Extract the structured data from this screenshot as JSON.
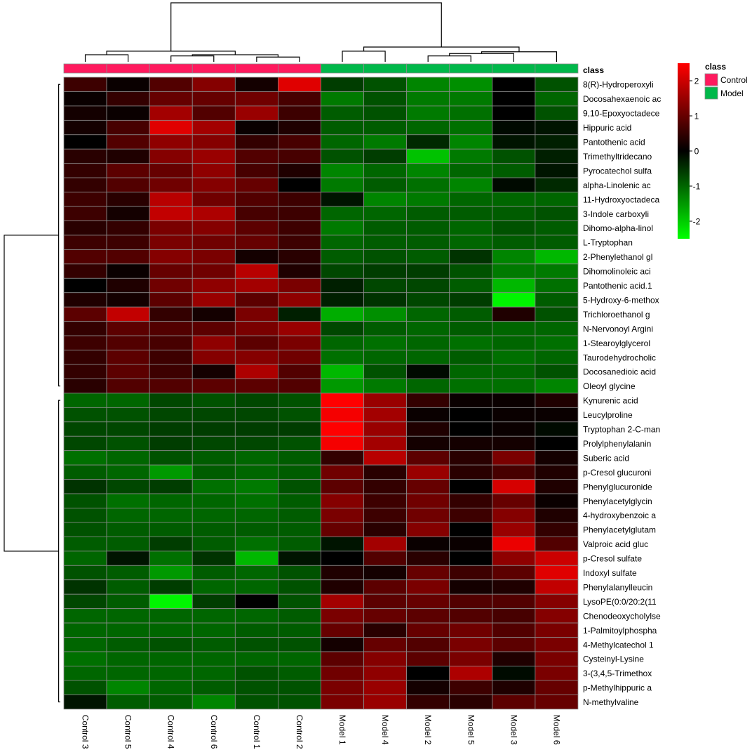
{
  "chart_data": {
    "type": "heatmap",
    "title": "",
    "colorscale": {
      "low": "#00ff00",
      "mid": "#000000",
      "high": "#ff0000",
      "range": [
        -2.5,
        2.5
      ],
      "ticks": [
        2,
        1,
        0,
        -1,
        -2
      ]
    },
    "annotation": {
      "label": "class",
      "legend_title": "class",
      "levels": [
        {
          "name": "Control",
          "color": "#ff1a5e"
        },
        {
          "name": "Model",
          "color": "#00b84a"
        }
      ]
    },
    "columns": [
      {
        "label": "Control 3",
        "class": "Control"
      },
      {
        "label": "Control 5",
        "class": "Control"
      },
      {
        "label": "Control 4",
        "class": "Control"
      },
      {
        "label": "Control 6",
        "class": "Control"
      },
      {
        "label": "Control 1",
        "class": "Control"
      },
      {
        "label": "Control 2",
        "class": "Control"
      },
      {
        "label": "Model 1",
        "class": "Model"
      },
      {
        "label": "Model 4",
        "class": "Model"
      },
      {
        "label": "Model 2",
        "class": "Model"
      },
      {
        "label": "Model 5",
        "class": "Model"
      },
      {
        "label": "Model 3",
        "class": "Model"
      },
      {
        "label": "Model 6",
        "class": "Model"
      }
    ],
    "rows": [
      "8(R)-Hydroperoxyli",
      "Docosahexaenoic ac",
      "9,10-Epoxyoctadece",
      "Hippuric acid",
      "Pantothenic acid",
      "Trimethyltridecano",
      "Pyrocatechol sulfa",
      "alpha-Linolenic ac",
      "11-Hydroxyoctadeca",
      "3-Indole carboxyli",
      "Dihomo-alpha-linol",
      "L-Tryptophan",
      "2-Phenylethanol gl",
      "Dihomolinoleic aci",
      "Pantothenic acid.1",
      "5-Hydroxy-6-methox",
      "Trichloroethanol g",
      "N-Nervonoyl Argini",
      "1-Stearoylglycerol",
      "Taurodehydrocholic",
      "Docosanedioic acid",
      "Oleoyl glycine",
      "Kynurenic acid",
      "Leucylproline",
      "Tryptophan 2-C-man",
      "Prolylphenylalanin",
      "Suberic acid",
      "p-Cresol glucuroni",
      "Phenylglucuronide",
      "Phenylacetylglycin",
      "4-hydroxybenzoic a",
      "Phenylacetylglutam",
      "Valproic acid gluc",
      "p-Cresol sulfate",
      "Indoxyl sulfate",
      "Phenylalanylleucin",
      "LysoPE(0:0/20:2(11",
      "Chenodeoxycholylse",
      "1-Palmitoylphospha",
      "4-Methylcatechol 1",
      "Cysteinyl-Lysine",
      "3-(3,4,5-Trimethox",
      "p-Methylhippuric a",
      "N-methylvaline"
    ],
    "values": [
      [
        0.6,
        0.1,
        0.8,
        1.3,
        0.2,
        2.2,
        -0.6,
        -0.8,
        -1.3,
        -1.4,
        0.0,
        -0.8
      ],
      [
        0.1,
        0.5,
        1.0,
        1.0,
        1.1,
        0.7,
        -1.2,
        -0.8,
        -1.2,
        -1.2,
        0.0,
        -1.0
      ],
      [
        0.2,
        0.1,
        1.6,
        0.8,
        1.5,
        0.6,
        -0.9,
        -0.8,
        -1.2,
        -1.1,
        0.0,
        -0.8
      ],
      [
        0.2,
        0.7,
        2.2,
        1.6,
        0.1,
        0.3,
        -0.9,
        -0.9,
        -1.0,
        -1.1,
        -0.1,
        -0.2
      ],
      [
        0.0,
        0.8,
        1.4,
        1.3,
        0.5,
        0.7,
        -1.0,
        -1.2,
        -0.4,
        -1.3,
        -0.2,
        -0.3
      ],
      [
        0.4,
        0.3,
        1.3,
        1.5,
        0.8,
        0.7,
        -0.8,
        -0.6,
        -1.9,
        -1.2,
        -0.8,
        -0.3
      ],
      [
        0.5,
        0.9,
        1.0,
        1.4,
        0.7,
        0.3,
        -1.3,
        -1.0,
        -1.3,
        -1.0,
        -0.9,
        -0.2
      ],
      [
        0.5,
        0.8,
        1.1,
        1.3,
        1.0,
        0.0,
        -1.2,
        -0.9,
        -1.1,
        -1.3,
        -0.1,
        -0.4
      ],
      [
        0.6,
        0.4,
        1.8,
        1.1,
        0.8,
        0.6,
        -0.2,
        -1.3,
        -1.2,
        -1.0,
        -1.0,
        -1.0
      ],
      [
        0.6,
        0.2,
        1.9,
        1.7,
        0.7,
        0.6,
        -1.0,
        -1.0,
        -0.9,
        -0.9,
        -0.9,
        -0.8
      ],
      [
        0.4,
        0.5,
        1.2,
        1.3,
        0.9,
        0.6,
        -1.2,
        -0.9,
        -0.9,
        -1.0,
        -0.8,
        -0.9
      ],
      [
        0.6,
        0.6,
        1.2,
        1.1,
        1.0,
        0.6,
        -1.0,
        -0.9,
        -0.9,
        -1.0,
        -0.9,
        -0.9
      ],
      [
        0.8,
        0.8,
        1.3,
        1.2,
        0.2,
        0.4,
        -0.9,
        -0.8,
        -0.9,
        -0.5,
        -1.3,
        -1.8
      ],
      [
        0.5,
        0.1,
        1.0,
        1.1,
        1.8,
        0.3,
        -0.7,
        -0.6,
        -0.6,
        -0.8,
        -1.2,
        -1.2
      ],
      [
        0.0,
        0.3,
        1.1,
        1.4,
        1.6,
        1.2,
        -0.3,
        -0.7,
        -0.7,
        -0.9,
        -1.8,
        -1.1
      ],
      [
        0.3,
        0.2,
        0.9,
        1.5,
        0.9,
        1.4,
        -0.3,
        -0.5,
        -0.7,
        -0.6,
        -2.4,
        -0.9
      ],
      [
        0.9,
        1.9,
        0.5,
        0.2,
        1.2,
        -0.3,
        -1.7,
        -1.4,
        -1.0,
        -0.9,
        0.3,
        -0.8
      ],
      [
        0.5,
        0.9,
        0.8,
        0.9,
        1.2,
        1.5,
        -0.7,
        -0.9,
        -1.0,
        -0.9,
        -1.0,
        -1.0
      ],
      [
        0.6,
        0.8,
        0.7,
        1.4,
        0.9,
        1.2,
        -1.0,
        -1.1,
        -1.0,
        -1.1,
        -1.0,
        -1.1
      ],
      [
        0.5,
        0.9,
        0.6,
        1.3,
        1.3,
        1.1,
        -1.1,
        -1.0,
        -1.0,
        -0.9,
        -1.1,
        -1.0
      ],
      [
        0.5,
        0.9,
        0.6,
        0.2,
        1.7,
        0.8,
        -1.8,
        -0.8,
        -0.1,
        -1.0,
        -1.0,
        -0.8
      ],
      [
        0.4,
        0.8,
        0.8,
        0.9,
        0.9,
        0.8,
        -1.5,
        -1.2,
        -1.0,
        -1.1,
        -1.1,
        -1.3
      ],
      [
        -1.0,
        -1.0,
        -0.7,
        -0.8,
        -0.7,
        -0.8,
        2.5,
        1.5,
        0.5,
        0.1,
        0.1,
        0.3
      ],
      [
        -0.8,
        -0.8,
        -0.7,
        -0.7,
        -0.7,
        -0.8,
        2.4,
        1.6,
        0.1,
        0.0,
        0.1,
        0.1
      ],
      [
        -0.7,
        -0.7,
        -0.6,
        -0.6,
        -0.6,
        -0.6,
        2.5,
        1.5,
        0.3,
        0.0,
        0.1,
        -0.1
      ],
      [
        -0.7,
        -0.8,
        -0.6,
        -0.7,
        -0.7,
        -0.8,
        2.4,
        1.6,
        0.2,
        0.2,
        0.2,
        0.0
      ],
      [
        -1.1,
        -1.0,
        -0.8,
        -0.9,
        -1.0,
        -0.9,
        0.5,
        1.8,
        0.9,
        0.4,
        1.2,
        0.2
      ],
      [
        -0.9,
        -1.0,
        -1.5,
        -0.9,
        -1.0,
        -0.9,
        1.1,
        0.4,
        1.5,
        0.4,
        0.7,
        0.3
      ],
      [
        -0.5,
        -0.7,
        -0.6,
        -1.1,
        -1.2,
        -0.8,
        0.9,
        0.5,
        1.0,
        0.0,
        2.1,
        0.3
      ],
      [
        -0.8,
        -1.1,
        -1.0,
        -1.0,
        -1.1,
        -0.9,
        1.3,
        0.6,
        1.1,
        0.5,
        1.0,
        0.1
      ],
      [
        -0.8,
        -1.0,
        -1.0,
        -1.0,
        -1.0,
        -0.9,
        1.2,
        0.6,
        1.1,
        0.6,
        1.3,
        0.3
      ],
      [
        -0.8,
        -0.9,
        -0.9,
        -0.9,
        -0.9,
        -0.9,
        1.0,
        0.4,
        1.3,
        0.0,
        1.5,
        0.5
      ],
      [
        -0.9,
        -0.9,
        -0.6,
        -0.9,
        -1.1,
        -0.9,
        -0.2,
        1.6,
        0.1,
        0.1,
        2.3,
        0.8
      ],
      [
        -1.0,
        -0.2,
        -1.1,
        -0.5,
        -1.8,
        -0.2,
        0.0,
        0.8,
        0.4,
        0.0,
        1.4,
        2.0
      ],
      [
        -0.8,
        -0.9,
        -1.5,
        -0.9,
        -1.0,
        -0.8,
        0.3,
        0.2,
        1.0,
        0.6,
        0.9,
        2.2
      ],
      [
        -0.5,
        -0.9,
        -0.6,
        -1.0,
        -1.0,
        -0.8,
        0.3,
        0.9,
        1.2,
        0.2,
        0.3,
        1.9
      ],
      [
        -0.7,
        -0.9,
        -2.4,
        -0.6,
        0.0,
        -0.8,
        1.6,
        0.9,
        1.0,
        0.8,
        0.8,
        1.3
      ],
      [
        -1.0,
        -1.0,
        -1.0,
        -1.0,
        -1.0,
        -0.9,
        1.2,
        1.0,
        0.9,
        0.8,
        0.7,
        1.3
      ],
      [
        -1.0,
        -1.0,
        -1.0,
        -1.0,
        -0.9,
        -0.9,
        1.0,
        0.4,
        1.0,
        1.1,
        0.8,
        1.2
      ],
      [
        -1.0,
        -0.9,
        -0.8,
        -0.9,
        -0.8,
        -0.8,
        0.2,
        1.0,
        0.8,
        1.2,
        0.9,
        1.2
      ],
      [
        -1.1,
        -1.0,
        -1.0,
        -1.0,
        -1.0,
        -1.0,
        0.9,
        1.3,
        0.9,
        1.2,
        0.3,
        1.2
      ],
      [
        -1.0,
        -1.0,
        -1.0,
        -1.0,
        -0.8,
        -0.9,
        1.1,
        1.4,
        0.0,
        1.7,
        -0.1,
        1.2
      ],
      [
        -0.8,
        -1.3,
        -1.0,
        -0.9,
        -0.8,
        -0.8,
        1.2,
        1.5,
        0.2,
        0.6,
        0.3,
        1.0
      ],
      [
        -0.2,
        -0.9,
        -0.9,
        -1.3,
        -0.8,
        -0.8,
        1.2,
        1.5,
        0.5,
        0.4,
        0.9,
        1.0
      ]
    ],
    "column_dendrogram": [
      {
        "a": [
          4,
          5
        ],
        "height": 0.08
      },
      {
        "a": [
          2,
          3
        ],
        "height": 0.1
      },
      {
        "a": [
          0,
          1
        ],
        "height": 0.12
      },
      {
        "a": [
          [
            2,
            3
          ],
          [
            4,
            5
          ]
        ],
        "height": 0.12
      },
      {
        "a": [
          [
            0,
            1
          ],
          [
            [
              2,
              3
            ],
            [
              4,
              5
            ]
          ]
        ],
        "height": 0.18
      },
      {
        "a": [
          8,
          9
        ],
        "height": 0.1
      },
      {
        "a": [
          [
            8,
            9
          ],
          10
        ],
        "height": 0.14
      },
      {
        "a": [
          6,
          7
        ],
        "height": 0.18
      },
      {
        "a": [
          [
            [
              8,
              9
            ],
            10
          ],
          11
        ],
        "height": 0.17
      },
      {
        "a": [
          [
            6,
            7
          ],
          [
            [
              [
                8,
                9
              ],
              10
            ],
            11
          ]
        ],
        "height": 0.25
      },
      {
        "a": [
          [
            [
              0,
              1
            ],
            [
              [
                2,
                3
              ],
              [
                4,
                5
              ]
            ]
          ],
          [
            [
              6,
              7
            ],
            [
              [
                [
                  8,
                  9
                ],
                10
              ],
              11
            ]
          ]
        ],
        "height": 1.0
      }
    ],
    "row_dendrogram": [
      {
        "a": [
          0,
          21
        ],
        "height": 0.03
      },
      {
        "a": [
          22,
          43
        ],
        "height": 0.03
      },
      {
        "a": [
          [
            0,
            21
          ],
          [
            22,
            43
          ]
        ],
        "height": 1.0
      }
    ]
  }
}
